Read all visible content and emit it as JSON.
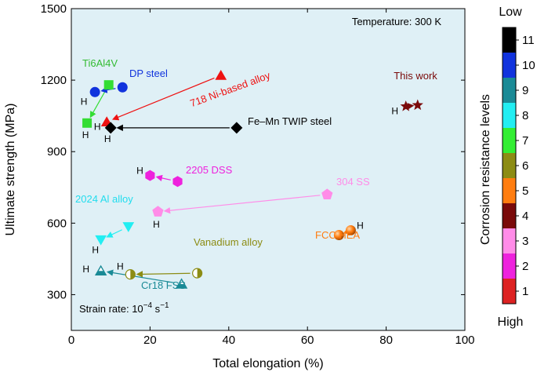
{
  "chart_data": {
    "type": "scatter",
    "xlabel": "Total elongation (%)",
    "ylabel": "Ultimate strength (MPa)",
    "xlim": [
      0,
      100
    ],
    "ylim": [
      150,
      1500
    ],
    "xticks": [
      "0",
      "20",
      "40",
      "60",
      "80",
      "100"
    ],
    "yticks": [
      "300",
      "600",
      "900",
      "1200",
      "1500"
    ],
    "plot_background": "#dff0f6",
    "annotations": {
      "temperature": "Temperature: 300 K",
      "strain_rate_prefix": "Strain rate: 10",
      "strain_rate_exp": "−4",
      "strain_rate_unit": " s",
      "strain_rate_unit_exp": "−1"
    },
    "colorbar": {
      "title": "Corrosion resistance levels",
      "top_label": "Low",
      "bottom_label": "High",
      "levels": [
        {
          "label": "11",
          "color": "#000000"
        },
        {
          "label": "10",
          "color": "#1133dd"
        },
        {
          "label": "9",
          "color": "#1a8a96"
        },
        {
          "label": "8",
          "color": "#22eef2"
        },
        {
          "label": "7",
          "color": "#33ee33"
        },
        {
          "label": "6",
          "color": "#8c8c14"
        },
        {
          "label": "5",
          "color": "#ff7d10"
        },
        {
          "label": "4",
          "color": "#7a0a0a"
        },
        {
          "label": "3",
          "color": "#ff8ce8"
        },
        {
          "label": "2",
          "color": "#ee22dd"
        },
        {
          "label": "1",
          "color": "#dd2222"
        }
      ]
    },
    "series": [
      {
        "name": "This work",
        "color": "#7a0a0a",
        "marker": "star",
        "label_color": "#7a0a0a",
        "points": [
          {
            "x": 85,
            "y": 1090,
            "h": true
          },
          {
            "x": 88,
            "y": 1095,
            "h": false
          }
        ]
      },
      {
        "name": "718 Ni-based alloy",
        "color": "#ee1111",
        "marker": "triangle",
        "label_color": "#ee1111",
        "points": [
          {
            "x": 38,
            "y": 1220,
            "h": false
          },
          {
            "x": 9,
            "y": 1025,
            "h": true
          }
        ]
      },
      {
        "name": "Fe–Mn TWIP steel",
        "color": "#000000",
        "marker": "diamond",
        "label_color": "#000000",
        "points": [
          {
            "x": 42,
            "y": 1000,
            "h": false
          },
          {
            "x": 10,
            "y": 1000,
            "h": true
          }
        ]
      },
      {
        "name": "Ti6Al4V",
        "color": "#33dd33",
        "marker": "square",
        "label_color": "#33bb33",
        "points": [
          {
            "x": 9.5,
            "y": 1180,
            "h": false
          },
          {
            "x": 4,
            "y": 1020,
            "h": true
          }
        ]
      },
      {
        "name": "DP steel",
        "color": "#1133dd",
        "marker": "circle",
        "label_color": "#1133dd",
        "points": [
          {
            "x": 13,
            "y": 1170,
            "h": false
          },
          {
            "x": 6,
            "y": 1150,
            "h": true
          }
        ]
      },
      {
        "name": "2205 DSS",
        "color": "#ee22dd",
        "marker": "hexagon",
        "label_color": "#ee22dd",
        "points": [
          {
            "x": 27,
            "y": 775,
            "h": false
          },
          {
            "x": 20,
            "y": 800,
            "h": true
          }
        ]
      },
      {
        "name": "304 SS",
        "color": "#ff8ce8",
        "marker": "pentagon",
        "label_color": "#ff8ce8",
        "points": [
          {
            "x": 65,
            "y": 720,
            "h": false
          },
          {
            "x": 22,
            "y": 648,
            "h": true
          }
        ]
      },
      {
        "name": "2024 Al alloy",
        "color": "#22eef2",
        "marker": "triangle-down",
        "label_color": "#22ddee",
        "points": [
          {
            "x": 14.5,
            "y": 585,
            "h": false
          },
          {
            "x": 7.5,
            "y": 530,
            "h": true
          }
        ]
      },
      {
        "name": "FCC HEA",
        "color": "#ff7d10",
        "marker": "sphere",
        "label_color": "#ff7d10",
        "points": [
          {
            "x": 71,
            "y": 570,
            "h": true
          },
          {
            "x": 68,
            "y": 550,
            "h": false
          }
        ]
      },
      {
        "name": "Vanadium alloy",
        "color": "#8c8c14",
        "marker": "half-circle",
        "label_color": "#8c8c14",
        "points": [
          {
            "x": 32,
            "y": 390,
            "h": false
          },
          {
            "x": 15,
            "y": 385,
            "h": true
          }
        ]
      },
      {
        "name": "Cr18 FSS",
        "color": "#1a8a96",
        "marker": "half-triangle",
        "label_color": "#1a8a96",
        "points": [
          {
            "x": 28,
            "y": 345,
            "h": false
          },
          {
            "x": 7.5,
            "y": 400,
            "h": true
          }
        ]
      }
    ]
  }
}
